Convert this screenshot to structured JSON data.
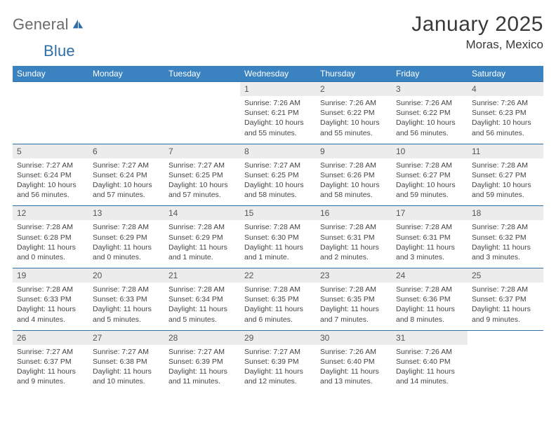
{
  "brand": {
    "name_part1": "General",
    "name_part2": "Blue"
  },
  "title": "January 2025",
  "location": "Moras, Mexico",
  "colors": {
    "header_bg": "#3b83c0",
    "header_text": "#ffffff",
    "daynum_bg": "#ececec",
    "border": "#2f6fa8",
    "logo_gray": "#6b6b6b",
    "logo_blue": "#2f6fa8"
  },
  "day_names": [
    "Sunday",
    "Monday",
    "Tuesday",
    "Wednesday",
    "Thursday",
    "Friday",
    "Saturday"
  ],
  "weeks": [
    [
      null,
      null,
      null,
      {
        "n": "1",
        "sr": "7:26 AM",
        "ss": "6:21 PM",
        "dh": "10",
        "dm": "55 minutes"
      },
      {
        "n": "2",
        "sr": "7:26 AM",
        "ss": "6:22 PM",
        "dh": "10",
        "dm": "55 minutes"
      },
      {
        "n": "3",
        "sr": "7:26 AM",
        "ss": "6:22 PM",
        "dh": "10",
        "dm": "56 minutes"
      },
      {
        "n": "4",
        "sr": "7:26 AM",
        "ss": "6:23 PM",
        "dh": "10",
        "dm": "56 minutes"
      }
    ],
    [
      {
        "n": "5",
        "sr": "7:27 AM",
        "ss": "6:24 PM",
        "dh": "10",
        "dm": "56 minutes"
      },
      {
        "n": "6",
        "sr": "7:27 AM",
        "ss": "6:24 PM",
        "dh": "10",
        "dm": "57 minutes"
      },
      {
        "n": "7",
        "sr": "7:27 AM",
        "ss": "6:25 PM",
        "dh": "10",
        "dm": "57 minutes"
      },
      {
        "n": "8",
        "sr": "7:27 AM",
        "ss": "6:25 PM",
        "dh": "10",
        "dm": "58 minutes"
      },
      {
        "n": "9",
        "sr": "7:28 AM",
        "ss": "6:26 PM",
        "dh": "10",
        "dm": "58 minutes"
      },
      {
        "n": "10",
        "sr": "7:28 AM",
        "ss": "6:27 PM",
        "dh": "10",
        "dm": "59 minutes"
      },
      {
        "n": "11",
        "sr": "7:28 AM",
        "ss": "6:27 PM",
        "dh": "10",
        "dm": "59 minutes"
      }
    ],
    [
      {
        "n": "12",
        "sr": "7:28 AM",
        "ss": "6:28 PM",
        "dh": "11",
        "dm": "0 minutes"
      },
      {
        "n": "13",
        "sr": "7:28 AM",
        "ss": "6:29 PM",
        "dh": "11",
        "dm": "0 minutes"
      },
      {
        "n": "14",
        "sr": "7:28 AM",
        "ss": "6:29 PM",
        "dh": "11",
        "dm": "1 minute"
      },
      {
        "n": "15",
        "sr": "7:28 AM",
        "ss": "6:30 PM",
        "dh": "11",
        "dm": "1 minute"
      },
      {
        "n": "16",
        "sr": "7:28 AM",
        "ss": "6:31 PM",
        "dh": "11",
        "dm": "2 minutes"
      },
      {
        "n": "17",
        "sr": "7:28 AM",
        "ss": "6:31 PM",
        "dh": "11",
        "dm": "3 minutes"
      },
      {
        "n": "18",
        "sr": "7:28 AM",
        "ss": "6:32 PM",
        "dh": "11",
        "dm": "3 minutes"
      }
    ],
    [
      {
        "n": "19",
        "sr": "7:28 AM",
        "ss": "6:33 PM",
        "dh": "11",
        "dm": "4 minutes"
      },
      {
        "n": "20",
        "sr": "7:28 AM",
        "ss": "6:33 PM",
        "dh": "11",
        "dm": "5 minutes"
      },
      {
        "n": "21",
        "sr": "7:28 AM",
        "ss": "6:34 PM",
        "dh": "11",
        "dm": "5 minutes"
      },
      {
        "n": "22",
        "sr": "7:28 AM",
        "ss": "6:35 PM",
        "dh": "11",
        "dm": "6 minutes"
      },
      {
        "n": "23",
        "sr": "7:28 AM",
        "ss": "6:35 PM",
        "dh": "11",
        "dm": "7 minutes"
      },
      {
        "n": "24",
        "sr": "7:28 AM",
        "ss": "6:36 PM",
        "dh": "11",
        "dm": "8 minutes"
      },
      {
        "n": "25",
        "sr": "7:28 AM",
        "ss": "6:37 PM",
        "dh": "11",
        "dm": "9 minutes"
      }
    ],
    [
      {
        "n": "26",
        "sr": "7:27 AM",
        "ss": "6:37 PM",
        "dh": "11",
        "dm": "9 minutes"
      },
      {
        "n": "27",
        "sr": "7:27 AM",
        "ss": "6:38 PM",
        "dh": "11",
        "dm": "10 minutes"
      },
      {
        "n": "28",
        "sr": "7:27 AM",
        "ss": "6:39 PM",
        "dh": "11",
        "dm": "11 minutes"
      },
      {
        "n": "29",
        "sr": "7:27 AM",
        "ss": "6:39 PM",
        "dh": "11",
        "dm": "12 minutes"
      },
      {
        "n": "30",
        "sr": "7:26 AM",
        "ss": "6:40 PM",
        "dh": "11",
        "dm": "13 minutes"
      },
      {
        "n": "31",
        "sr": "7:26 AM",
        "ss": "6:40 PM",
        "dh": "11",
        "dm": "14 minutes"
      },
      null
    ]
  ],
  "labels": {
    "sunrise": "Sunrise:",
    "sunset": "Sunset:",
    "daylight": "Daylight:",
    "hours_word": "hours",
    "and_word": "and"
  }
}
